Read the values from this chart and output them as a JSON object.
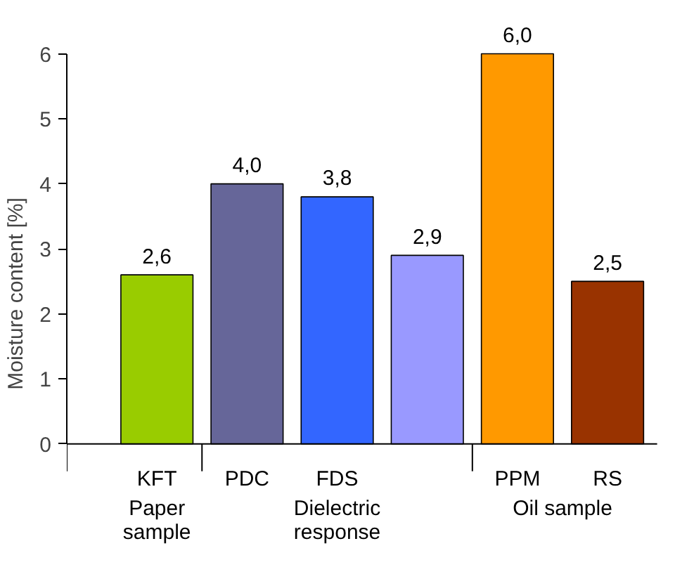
{
  "chart_data": {
    "type": "bar",
    "ylabel": "Moisture content [%]",
    "categories": [
      "KFT",
      "PDC",
      "FDS",
      null,
      "PPM",
      "RS"
    ],
    "values": [
      2.6,
      4.0,
      3.8,
      2.9,
      6.0,
      2.5
    ],
    "colors": [
      "#99cc00",
      "#666699",
      "#3366ff",
      "#9999ff",
      "#ff9900",
      "#993300"
    ],
    "value_labels": [
      "2,6",
      "4,0",
      "3,8",
      "2,9",
      "6,0",
      "2,5"
    ],
    "annotations": [
      "Paper\nsample",
      "Dielectric\nresponse",
      "Oil sample"
    ],
    "ylim": [
      0,
      6
    ],
    "yticks": [
      0,
      1,
      2,
      3,
      4,
      5,
      6
    ],
    "grid": false
  }
}
